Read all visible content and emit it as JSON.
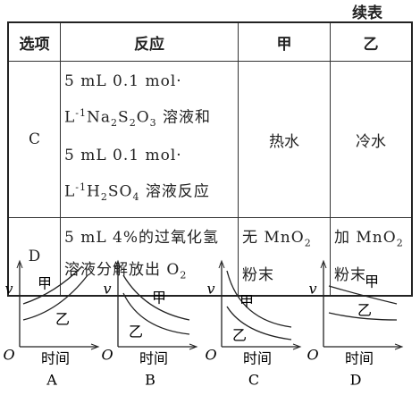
{
  "header": {
    "title": "续表"
  },
  "table": {
    "columns": [
      "选项",
      "反应",
      "甲",
      "乙"
    ],
    "rows": [
      {
        "option": "C",
        "reaction": [
          "5 mL 0.1 mol·",
          "L",
          "-1",
          "Na",
          "2",
          "S",
          "2",
          "O",
          "3",
          " 溶液和",
          "5 mL 0.1 mol·",
          "L",
          "-1",
          "H",
          "2",
          "SO",
          "4",
          " 溶液反应"
        ],
        "jia": [
          "热水"
        ],
        "yi": [
          "冷水"
        ]
      },
      {
        "option": "D",
        "reaction": [
          "5 mL 4%的过氧化氢溶液分解放出 O",
          "2"
        ],
        "jia": [
          "无 MnO",
          "2",
          "粉末"
        ],
        "yi": [
          "加 MnO",
          "2",
          "粉末"
        ]
      }
    ]
  },
  "graphs": [
    {
      "y_label": "v",
      "origin": "O",
      "x_label": "时间",
      "curve_labels": [
        "甲",
        "乙"
      ],
      "caption": "A"
    },
    {
      "y_label": "v",
      "origin": "O",
      "x_label": "时间",
      "curve_labels": [
        "甲",
        "乙"
      ],
      "caption": "B"
    },
    {
      "y_label": "v",
      "origin": "O",
      "x_label": "时间",
      "curve_labels": [
        "甲",
        "乙"
      ],
      "caption": "C"
    },
    {
      "y_label": "v",
      "origin": "O",
      "x_label": "时间",
      "curve_labels": [
        "甲",
        "乙"
      ],
      "caption": "D"
    }
  ]
}
